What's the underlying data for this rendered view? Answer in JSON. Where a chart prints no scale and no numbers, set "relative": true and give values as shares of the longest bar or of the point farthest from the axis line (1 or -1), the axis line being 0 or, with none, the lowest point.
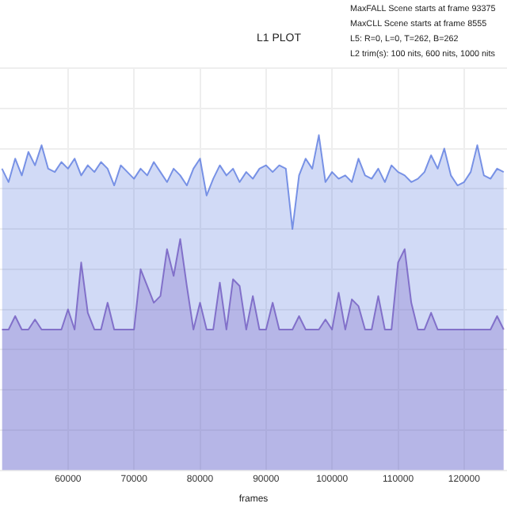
{
  "chart_data": {
    "type": "area",
    "title": "L1 PLOT",
    "xlabel": "frames",
    "relative": true,
    "grid": true,
    "legend": false,
    "annotations": [
      "MaxFALL Scene starts at frame 93375",
      "MaxCLL Scene starts at frame 8555",
      "L5: R=0, L=0, T=262, B=262",
      "L2 trim(s): 100 nits, 600 nits, 1000 nits"
    ],
    "x": [
      50000,
      51000,
      52000,
      53000,
      54000,
      55000,
      56000,
      57000,
      58000,
      59000,
      60000,
      61000,
      62000,
      63000,
      64000,
      65000,
      66000,
      67000,
      68000,
      69000,
      70000,
      71000,
      72000,
      73000,
      74000,
      75000,
      76000,
      77000,
      78000,
      79000,
      80000,
      81000,
      82000,
      83000,
      84000,
      85000,
      86000,
      87000,
      88000,
      89000,
      90000,
      91000,
      92000,
      93000,
      94000,
      95000,
      96000,
      97000,
      98000,
      99000,
      100000,
      101000,
      102000,
      103000,
      104000,
      105000,
      106000,
      107000,
      108000,
      109000,
      110000,
      111000,
      112000,
      113000,
      114000,
      115000,
      116000,
      117000,
      118000,
      119000,
      120000,
      121000,
      122000,
      123000,
      124000,
      125000,
      126000
    ],
    "xlim": [
      49700,
      126500
    ],
    "xticks": [
      60000,
      70000,
      80000,
      90000,
      100000,
      110000,
      120000
    ],
    "series": [
      {
        "color": "#5b7be0",
        "values": [
          0.9,
          0.86,
          0.93,
          0.88,
          0.95,
          0.91,
          0.97,
          0.9,
          0.89,
          0.92,
          0.9,
          0.93,
          0.88,
          0.91,
          0.89,
          0.92,
          0.9,
          0.85,
          0.91,
          0.89,
          0.87,
          0.9,
          0.88,
          0.92,
          0.89,
          0.86,
          0.9,
          0.88,
          0.85,
          0.9,
          0.93,
          0.82,
          0.87,
          0.91,
          0.88,
          0.9,
          0.86,
          0.89,
          0.87,
          0.9,
          0.91,
          0.89,
          0.91,
          0.9,
          0.72,
          0.88,
          0.93,
          0.9,
          1.0,
          0.86,
          0.89,
          0.87,
          0.88,
          0.86,
          0.93,
          0.88,
          0.87,
          0.9,
          0.86,
          0.91,
          0.89,
          0.88,
          0.86,
          0.87,
          0.89,
          0.94,
          0.9,
          0.96,
          0.88,
          0.85,
          0.86,
          0.89,
          0.97,
          0.88,
          0.87,
          0.9,
          0.89
        ]
      },
      {
        "color": "#7b4fb5",
        "values": [
          0.42,
          0.42,
          0.46,
          0.42,
          0.42,
          0.45,
          0.42,
          0.42,
          0.42,
          0.42,
          0.48,
          0.42,
          0.62,
          0.47,
          0.42,
          0.42,
          0.5,
          0.42,
          0.42,
          0.42,
          0.42,
          0.6,
          0.55,
          0.5,
          0.52,
          0.66,
          0.58,
          0.69,
          0.55,
          0.42,
          0.5,
          0.42,
          0.42,
          0.56,
          0.42,
          0.57,
          0.55,
          0.42,
          0.52,
          0.42,
          0.42,
          0.5,
          0.42,
          0.42,
          0.42,
          0.46,
          0.42,
          0.42,
          0.42,
          0.45,
          0.42,
          0.53,
          0.42,
          0.51,
          0.49,
          0.42,
          0.42,
          0.52,
          0.42,
          0.42,
          0.62,
          0.66,
          0.5,
          0.42,
          0.42,
          0.47,
          0.42,
          0.42,
          0.42,
          0.42,
          0.42,
          0.42,
          0.42,
          0.42,
          0.42,
          0.46,
          0.42
        ]
      }
    ]
  }
}
